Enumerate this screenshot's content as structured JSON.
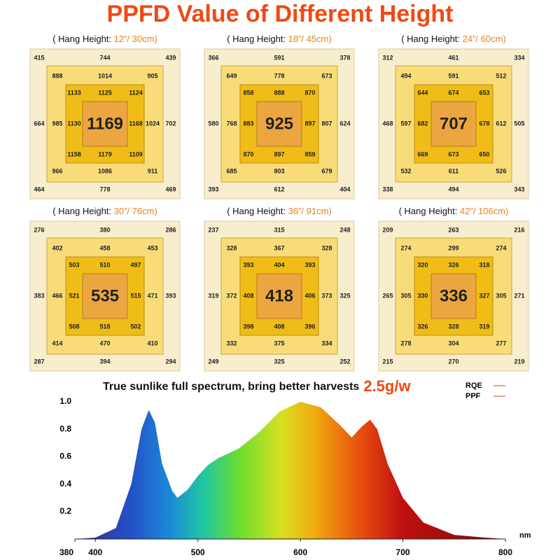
{
  "header": {
    "title": "PPFD Value of Different Height"
  },
  "panels": [
    {
      "label": "( Hang Height: ",
      "height": "12”/ 30cm)",
      "center": 1169,
      "inner": [
        1133,
        1125,
        1124,
        1130,
        1168,
        1158,
        1179,
        1109
      ],
      "middle": [
        888,
        1014,
        905,
        985,
        1024,
        966,
        1086,
        911
      ],
      "outer": [
        415,
        744,
        439,
        664,
        702,
        464,
        778,
        469
      ]
    },
    {
      "label": "( Hang Height: ",
      "height": "18”/ 45cm)",
      "center": 925,
      "inner": [
        858,
        888,
        870,
        883,
        897,
        870,
        897,
        859
      ],
      "middle": [
        649,
        778,
        673,
        768,
        807,
        685,
        803,
        679
      ],
      "outer": [
        366,
        591,
        378,
        580,
        624,
        393,
        612,
        404
      ]
    },
    {
      "label": "( Hang Height: ",
      "height": "24”/ 60cm)",
      "center": 707,
      "inner": [
        644,
        674,
        653,
        682,
        678,
        669,
        673,
        650
      ],
      "middle": [
        494,
        591,
        512,
        597,
        612,
        532,
        611,
        526
      ],
      "outer": [
        312,
        461,
        334,
        468,
        505,
        338,
        494,
        343
      ]
    },
    {
      "label": "( Hang Height: ",
      "height": "30”/ 76cm)",
      "center": 535,
      "inner": [
        503,
        510,
        497,
        521,
        515,
        508,
        518,
        502
      ],
      "middle": [
        402,
        458,
        453,
        466,
        471,
        414,
        470,
        410
      ],
      "outer": [
        276,
        380,
        286,
        383,
        393,
        287,
        394,
        294
      ]
    },
    {
      "label": "( Hang Height: ",
      "height": "36”/ 91cm)",
      "center": 418,
      "inner": [
        393,
        404,
        393,
        408,
        406,
        398,
        408,
        396
      ],
      "middle": [
        328,
        367,
        328,
        372,
        373,
        332,
        375,
        334
      ],
      "outer": [
        237,
        315,
        248,
        319,
        325,
        249,
        325,
        252
      ]
    },
    {
      "label": "( Hang Height: ",
      "height": "42”/ 106cm)",
      "center": 336,
      "inner": [
        320,
        326,
        318,
        330,
        327,
        326,
        328,
        319
      ],
      "middle": [
        274,
        299,
        274,
        305,
        305,
        278,
        304,
        277
      ],
      "outer": [
        209,
        263,
        216,
        265,
        271,
        215,
        270,
        219
      ]
    }
  ],
  "chart_data": {
    "type": "area",
    "title": "True sunlike full spectrum, bring better harvests",
    "annotation": "2.5g/w",
    "x_unit": "nm",
    "x": [
      380,
      400,
      420,
      435,
      445,
      452,
      458,
      465,
      475,
      480,
      490,
      500,
      510,
      520,
      540,
      560,
      580,
      600,
      620,
      640,
      650,
      660,
      668,
      675,
      685,
      700,
      720,
      750,
      780,
      800
    ],
    "values": [
      0,
      0.01,
      0.08,
      0.4,
      0.8,
      0.94,
      0.85,
      0.55,
      0.35,
      0.3,
      0.36,
      0.46,
      0.54,
      0.59,
      0.66,
      0.78,
      0.93,
      1.0,
      0.96,
      0.82,
      0.74,
      0.82,
      0.87,
      0.8,
      0.55,
      0.3,
      0.12,
      0.03,
      0.01,
      0
    ],
    "xlim": [
      380,
      800
    ],
    "xticks": [
      380,
      400,
      500,
      600,
      700,
      800
    ],
    "ylim": [
      0,
      1.05
    ],
    "yticks": [
      0.2,
      0.4,
      0.6,
      0.8,
      {
        "value": 1,
        "label": "1.0"
      }
    ],
    "legend": [
      {
        "name": "RQE",
        "color": "#e8605a"
      },
      {
        "name": "PPF",
        "color": "#e8605a"
      }
    ]
  }
}
